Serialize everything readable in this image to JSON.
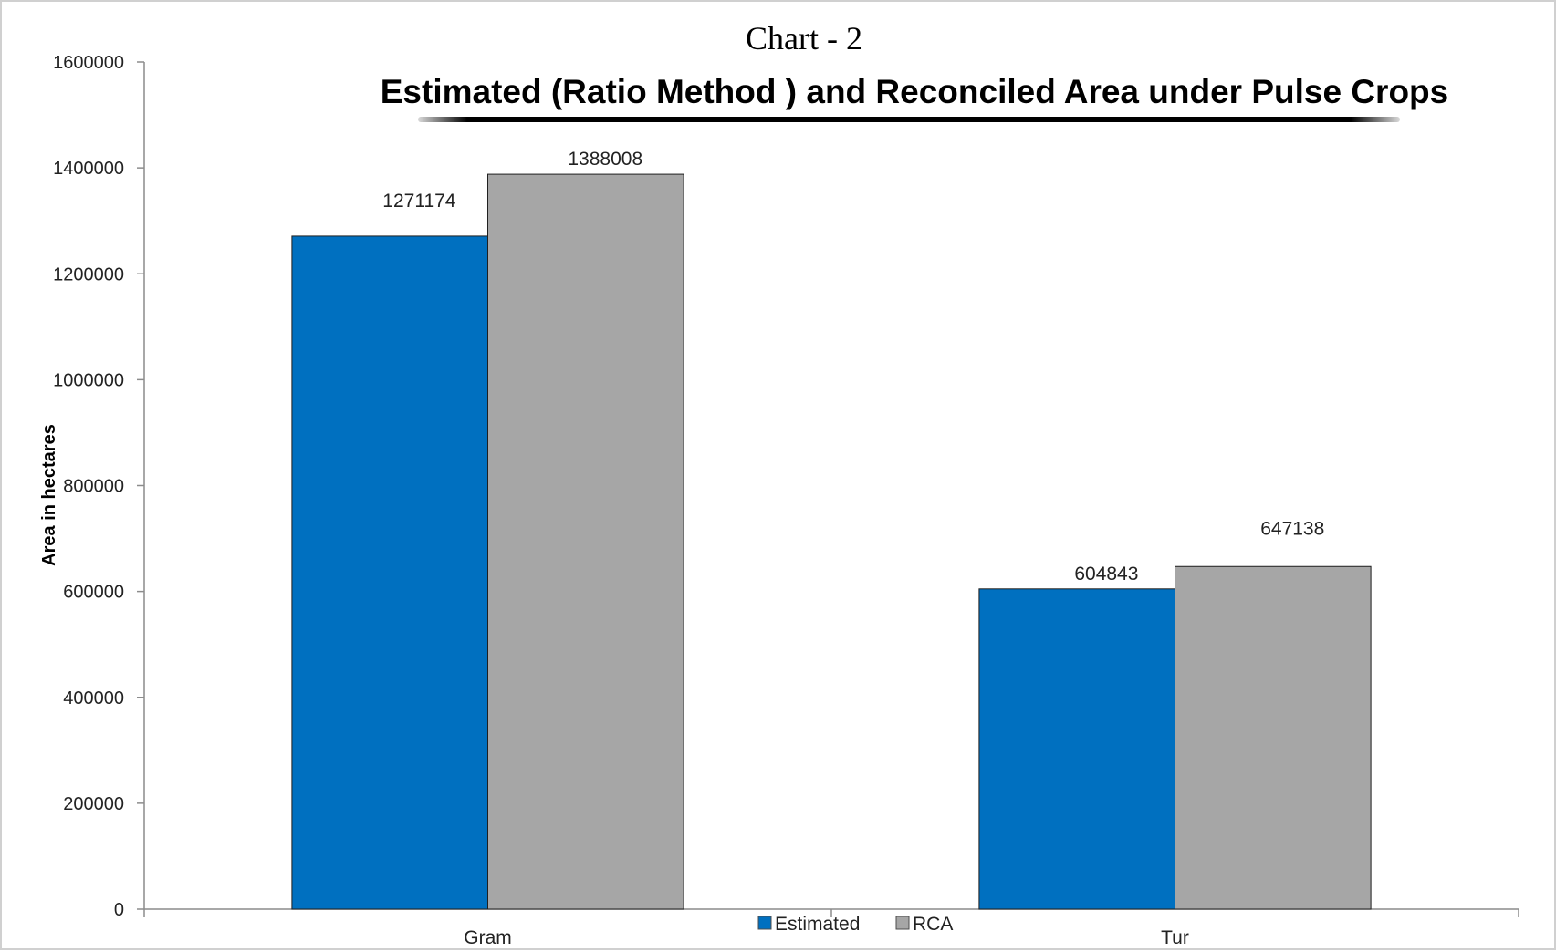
{
  "heading": "Chart - 2",
  "chart_data": {
    "type": "bar",
    "title": "Estimated (Ratio Method ) and Reconciled Area under Pulse Crops",
    "xlabel": "",
    "ylabel": "Area in hectares",
    "categories": [
      "Gram",
      "Tur"
    ],
    "series": [
      {
        "name": "Estimated",
        "color": "#0070C0",
        "values": [
          1271174,
          604843
        ]
      },
      {
        "name": "RCA",
        "color": "#A6A6A6",
        "values": [
          1388008,
          647138
        ]
      }
    ],
    "data_labels": [
      [
        "1271174",
        "604843"
      ],
      [
        "1388008",
        "647138"
      ]
    ],
    "ylim": [
      0,
      1600000
    ],
    "yticks": [
      0,
      200000,
      400000,
      600000,
      800000,
      1000000,
      1200000,
      1400000,
      1600000
    ],
    "ytick_labels": [
      "0",
      "200000",
      "400000",
      "600000",
      "800000",
      "1000000",
      "1200000",
      "1400000",
      "1600000"
    ],
    "grid": false,
    "legend": "bottom"
  }
}
